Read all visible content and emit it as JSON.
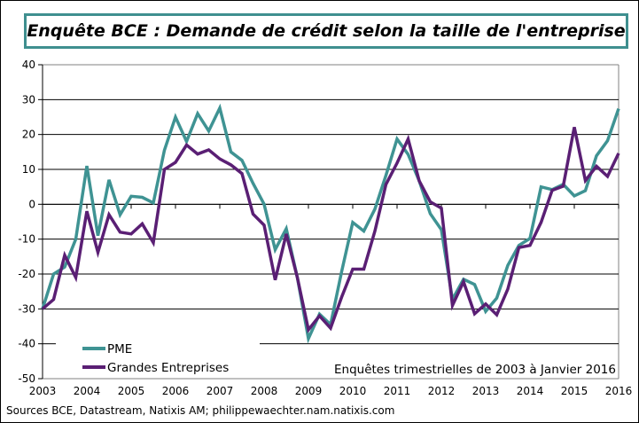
{
  "chart_data": {
    "type": "line",
    "title": "Enquête BCE : Demande de crédit selon la taille de l'entreprise",
    "annotation": "Enquêtes trimestrielles  de 2003 à Janvier  2016",
    "source": "Sources BCE, Datastream, Natixis AM; philippewaechter.nam.natixis.com",
    "frequency": "quarterly",
    "x_start": "2003-Q1",
    "x_end": "2016-Q1",
    "xlim": [
      2003,
      2016
    ],
    "ylim": [
      -50,
      40
    ],
    "x_ticks": [
      "2003",
      "2004",
      "2005",
      "2006",
      "2007",
      "2008",
      "2009",
      "2010",
      "2011",
      "2012",
      "2013",
      "2014",
      "2015",
      "2016"
    ],
    "y_ticks": [
      "40",
      "30",
      "20",
      "10",
      "0",
      "-10",
      "-20",
      "-30",
      "-40",
      "-50"
    ],
    "grid": "horizontal",
    "legend_position": "bottom-left",
    "series": [
      {
        "name": "PME",
        "color": "#3f9393",
        "values": [
          -30,
          -20,
          -18,
          -10,
          11,
          -9,
          7,
          -3,
          2.3,
          2,
          0.4,
          15.5,
          25,
          18,
          26,
          21,
          27.6,
          15,
          12.6,
          6,
          0,
          -13,
          -7,
          -21,
          -38.5,
          -31.5,
          -34.5,
          -19.3,
          -5.2,
          -7.7,
          -1.4,
          8.3,
          18.7,
          14.3,
          6.7,
          -2.7,
          -7.3,
          -27.3,
          -21.5,
          -23,
          -30.7,
          -26.9,
          -17.5,
          -11.8,
          -9.8,
          5,
          4.2,
          5.7,
          2.4,
          3.9,
          13.9,
          18.2,
          27.4
        ]
      },
      {
        "name": "Grandes Entreprises",
        "color": "#5a1f74",
        "values": [
          -30,
          -27.3,
          -14.6,
          -21,
          -2,
          -13.8,
          -3,
          -8,
          -8.5,
          -5.6,
          -11,
          10,
          12,
          17,
          14.4,
          15.6,
          13,
          11.3,
          8.8,
          -2.8,
          -6,
          -21.7,
          -8.5,
          -21,
          -36,
          -32,
          -35.5,
          -26.6,
          -18.6,
          -18.6,
          -7.7,
          5.7,
          11.8,
          18.7,
          6.7,
          0.7,
          -1.1,
          -29,
          -22.2,
          -31.4,
          -28.6,
          -31.7,
          -24.3,
          -12.4,
          -11.8,
          -5.2,
          4,
          5.2,
          22.1,
          6.8,
          10.9,
          8,
          14.6
        ]
      }
    ]
  }
}
